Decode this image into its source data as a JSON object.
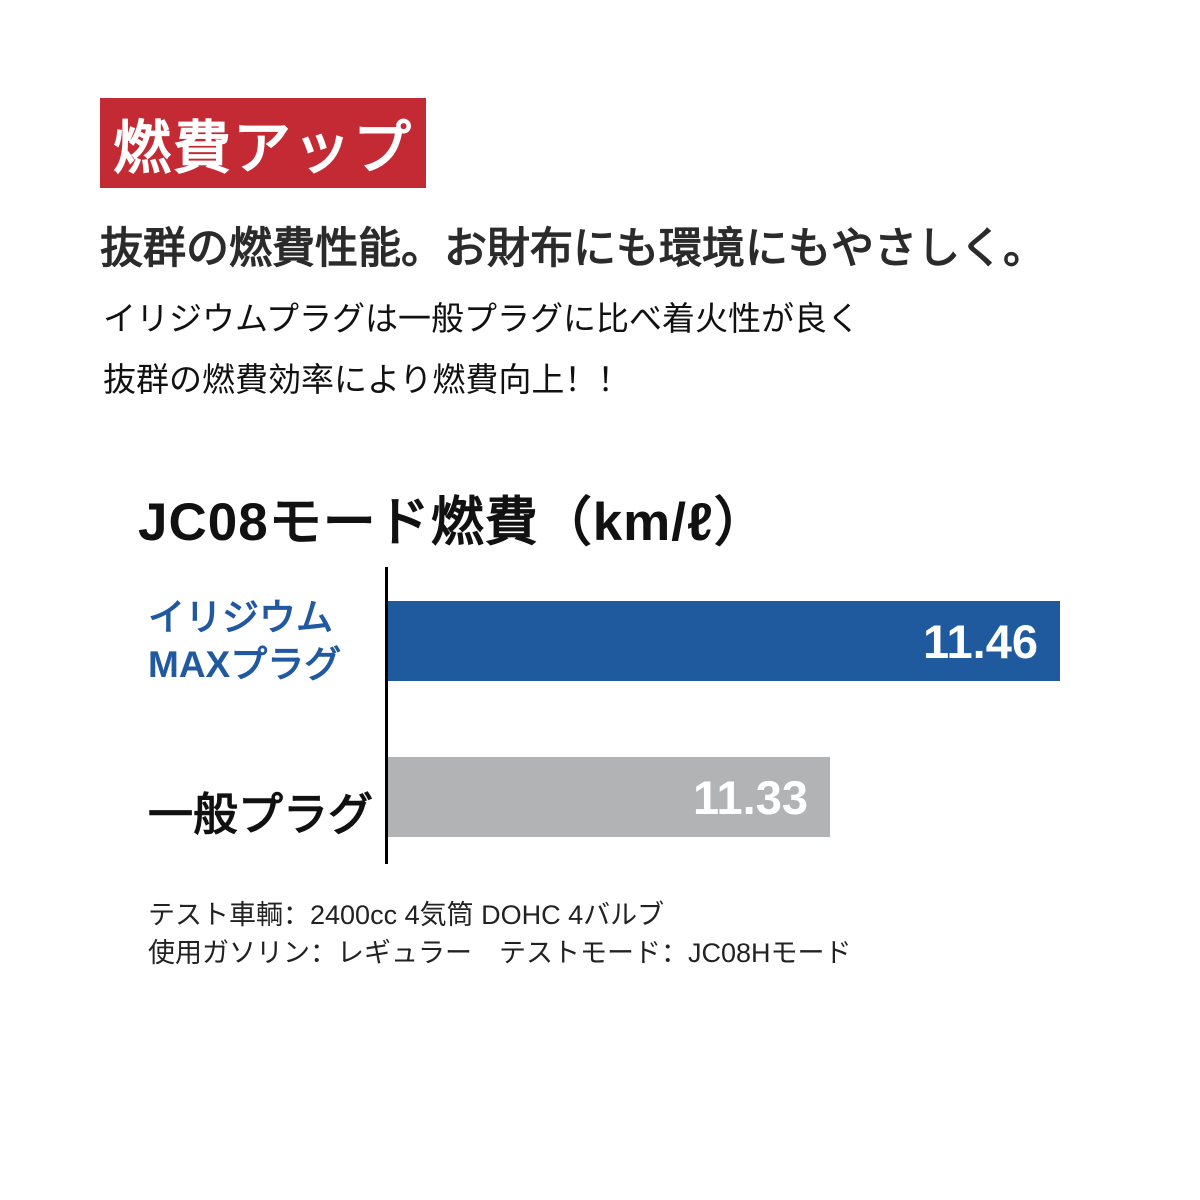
{
  "badge": {
    "label": "燃費アップ"
  },
  "headline": "抜群の燃費性能。お財布にも環境にもやさしく。",
  "body_lines": {
    "line1": "イリジウムプラグは一般プラグに比べ着火性が良く",
    "line2": "抜群の燃費効率により燃費向上！！"
  },
  "chart_data": {
    "type": "bar",
    "orientation": "horizontal",
    "title": "JC08モード燃費（km/ℓ）",
    "categories": [
      [
        "イリジウム",
        "MAXプラグ"
      ],
      [
        "一般プラグ"
      ]
    ],
    "values": [
      11.46,
      11.33
    ],
    "value_labels": [
      "11.46",
      "11.33"
    ],
    "xlabel": "km/ℓ",
    "xlim": [
      11.08,
      11.48
    ],
    "grid": false,
    "legend": "none",
    "value_label_position": "inside-end",
    "bar_colors": [
      "#1f5a9e",
      "#b1b3b5"
    ],
    "category_label_colors": [
      "#2159a0",
      "#111111"
    ],
    "value_label_color": "#ffffff"
  },
  "footnotes": {
    "line1": "テスト車輌：2400cc 4気筒 DOHC 4バルブ",
    "line2": "使用ガソリン：レギュラー　テストモード：JC08Hモード"
  },
  "colors": {
    "badge_bg": "#c32a33",
    "badge_text": "#ffffff",
    "headline_text": "#2b2b2b",
    "body_text": "#111111",
    "axis": "#000000"
  }
}
